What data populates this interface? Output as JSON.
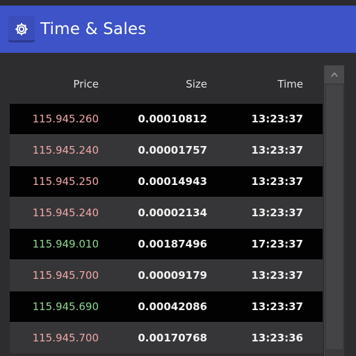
{
  "header": {
    "title": "Time & Sales",
    "settings_icon": "gear-icon",
    "color": "#3e53c8"
  },
  "table": {
    "columns": [
      "Price",
      "Size",
      "Time"
    ],
    "rows": [
      {
        "price": "115.945.260",
        "size": "0.00010812",
        "time": "13:23:37",
        "direction": "down"
      },
      {
        "price": "115.945.240",
        "size": "0.00001757",
        "time": "13:23:37",
        "direction": "down"
      },
      {
        "price": "115.945.250",
        "size": "0.00014943",
        "time": "13:23:37",
        "direction": "down"
      },
      {
        "price": "115.945.240",
        "size": "0.00002134",
        "time": "13:23:37",
        "direction": "down"
      },
      {
        "price": "115.949.010",
        "size": "0.00187496",
        "time": "17:23:37",
        "direction": "up"
      },
      {
        "price": "115.945.700",
        "size": "0.00009179",
        "time": "13:23:37",
        "direction": "down"
      },
      {
        "price": "115.945.690",
        "size": "0.00042086",
        "time": "13:23:37",
        "direction": "up"
      },
      {
        "price": "115.945.700",
        "size": "0.00170768",
        "time": "13:23:36",
        "direction": "down"
      }
    ]
  },
  "colors": {
    "price_down": "#f0a8a8",
    "price_up": "#8fd88f"
  }
}
